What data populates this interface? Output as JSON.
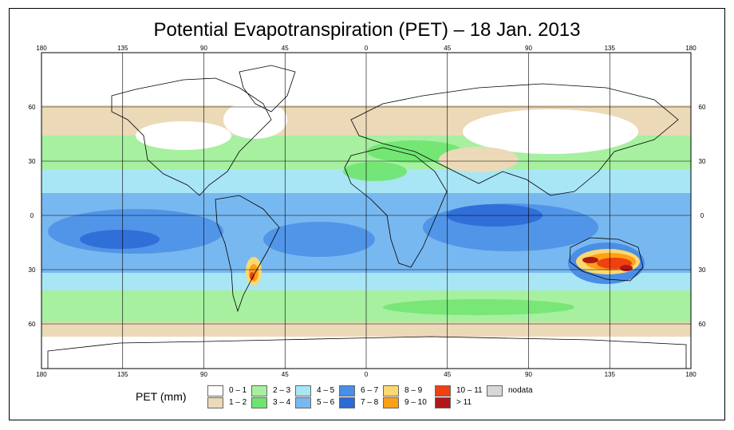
{
  "title": "Potential Evapotranspiration (PET) – 18 Jan. 2013",
  "axes": {
    "x_ticks": [
      "180",
      "135",
      "90",
      "45",
      "0",
      "45",
      "90",
      "135",
      "180"
    ],
    "y_ticks": [
      "60",
      "30",
      "0",
      "30",
      "60"
    ],
    "lon_values": [
      -180,
      -135,
      -90,
      -45,
      0,
      45,
      90,
      135,
      180
    ],
    "lat_values": [
      60,
      30,
      0,
      -30,
      -60
    ]
  },
  "legend": {
    "title": "PET (mm)",
    "items": [
      {
        "label": "0 – 1",
        "color": "#ffffff"
      },
      {
        "label": "1 – 2",
        "color": "#ecd9b8"
      },
      {
        "label": "2 – 3",
        "color": "#a6f0a0"
      },
      {
        "label": "3 – 4",
        "color": "#6ee46e"
      },
      {
        "label": "4 – 5",
        "color": "#a8e6f6"
      },
      {
        "label": "5 – 6",
        "color": "#78b8f0"
      },
      {
        "label": "6 – 7",
        "color": "#4a8ee6"
      },
      {
        "label": "7 – 8",
        "color": "#2c6ad6"
      },
      {
        "label": "8 – 9",
        "color": "#fcd870"
      },
      {
        "label": "9 – 10",
        "color": "#fca018"
      },
      {
        "label": "10 – 11",
        "color": "#f04010"
      },
      {
        "label": "> 11",
        "color": "#b01818"
      },
      {
        "label": "nodata",
        "color": "#d8d8d8"
      }
    ]
  }
}
